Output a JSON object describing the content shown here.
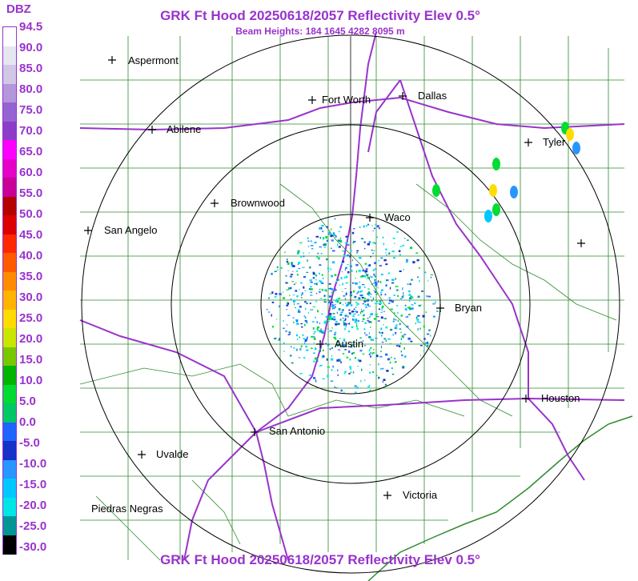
{
  "header": {
    "title": "GRK Ft Hood 20250618/2057 Reflectivity Elev 0.5°",
    "subtitle": "Beam Heights: 184 1645 4282 8095 m"
  },
  "footer": {
    "title": "GRK Ft Hood 20250618/2057 Reflectivity Elev 0.5°"
  },
  "legend": {
    "unit": "DBZ",
    "ticks": [
      "94.5",
      "90.0",
      "85.0",
      "80.0",
      "75.0",
      "70.0",
      "65.0",
      "60.0",
      "55.0",
      "50.0",
      "45.0",
      "40.0",
      "35.0",
      "30.0",
      "25.0",
      "20.0",
      "15.0",
      "10.0",
      "5.0",
      "0.0",
      "-5.0",
      "-10.0",
      "-15.0",
      "-20.0",
      "-25.0",
      "-30.0"
    ],
    "colors": [
      "#ffffff",
      "#e6e6f0",
      "#d2c8e6",
      "#b496dc",
      "#9664d2",
      "#8c3cc8",
      "#ff00ff",
      "#e600c8",
      "#c80096",
      "#b40000",
      "#dc0000",
      "#ff2800",
      "#ff5a00",
      "#ff8c00",
      "#ffb400",
      "#ffdc00",
      "#c8e600",
      "#78c800",
      "#00b400",
      "#00dc32",
      "#00c864",
      "#1e64ff",
      "#1432c8",
      "#2896ff",
      "#00c8ff",
      "#00e6e6",
      "#009696",
      "#000000"
    ]
  },
  "map": {
    "cities": [
      {
        "name": "Aspermont"
      },
      {
        "name": "Abilene"
      },
      {
        "name": "Fort Worth"
      },
      {
        "name": "Dallas"
      },
      {
        "name": "Tyler"
      },
      {
        "name": "Brownwood"
      },
      {
        "name": "Waco"
      },
      {
        "name": "San Angelo"
      },
      {
        "name": "Bryan"
      },
      {
        "name": "Austin"
      },
      {
        "name": "Houston"
      },
      {
        "name": "San Antonio"
      },
      {
        "name": "Uvalde"
      },
      {
        "name": "Victoria"
      },
      {
        "name": "Piedras Negras"
      },
      {
        "name": ""
      }
    ]
  }
}
